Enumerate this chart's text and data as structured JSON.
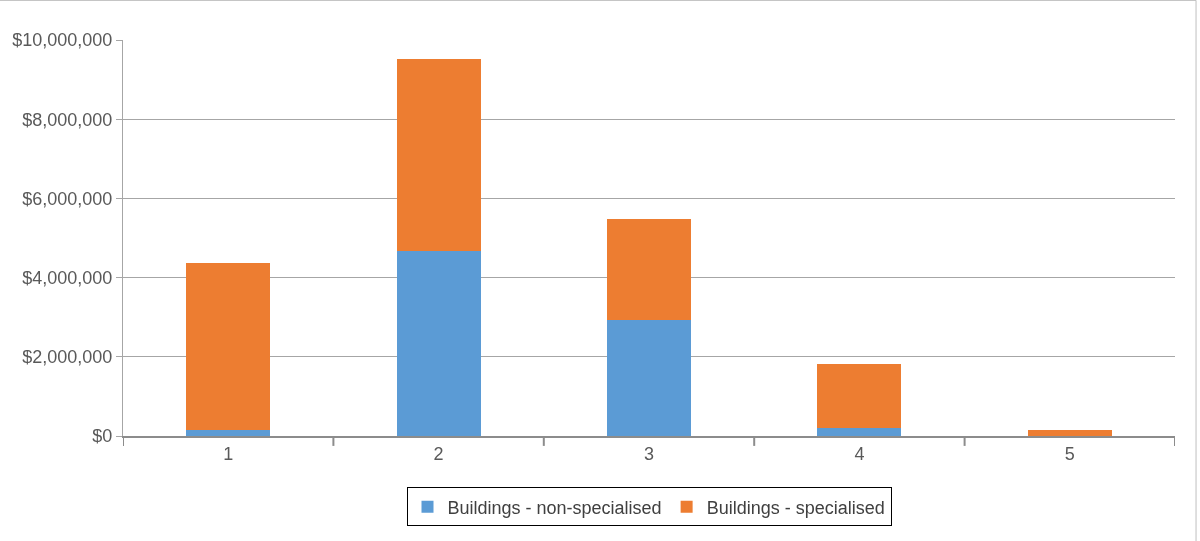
{
  "chart_data": {
    "type": "bar",
    "stacked": true,
    "categories": [
      "1",
      "2",
      "3",
      "4",
      "5"
    ],
    "series": [
      {
        "name": "Buildings - non-specialised",
        "color": "#5b9bd5",
        "values": [
          160000,
          4660000,
          2940000,
          190000,
          0
        ]
      },
      {
        "name": "Buildings - specialised",
        "color": "#ed7d31",
        "values": [
          4210000,
          4860000,
          2540000,
          1640000,
          160000
        ]
      }
    ],
    "ylim": [
      0,
      10000000
    ],
    "yticks": [
      {
        "value": 0,
        "label": "$0"
      },
      {
        "value": 2000000,
        "label": "$2,000,000"
      },
      {
        "value": 4000000,
        "label": "$4,000,000"
      },
      {
        "value": 6000000,
        "label": "$6,000,000"
      },
      {
        "value": 8000000,
        "label": "$8,000,000"
      },
      {
        "value": 10000000,
        "label": "$10,000,000"
      }
    ],
    "grid": "y",
    "legend": "bottom"
  }
}
